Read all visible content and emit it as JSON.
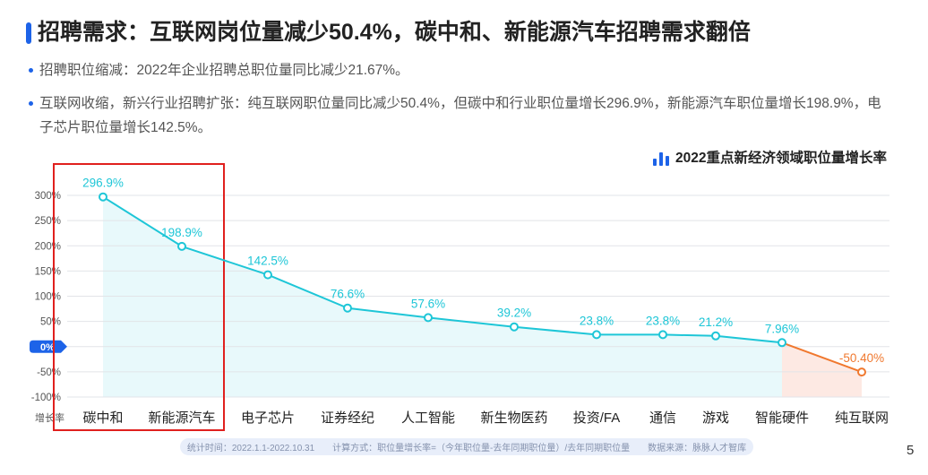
{
  "title": "招聘需求：互联网岗位量减少50.4%，碳中和、新能源汽车招聘需求翻倍",
  "bullets": [
    {
      "text": "招聘职位缩减：2022年企业招聘总职位量同比减少21.67%。"
    },
    {
      "text": "互联网收缩，新兴行业招聘扩张：纯互联网职位量同比减少50.4%，但碳中和行业职位量增长296.9%，新能源汽车职位量增长198.9%，电子芯片职位量增长142.5%。"
    }
  ],
  "chart_data": {
    "type": "line",
    "title": "2022重点新经济领域职位量增长率",
    "title_icon": "bar-chart-icon",
    "ylabel": "增长率",
    "ylim": [
      -100,
      300
    ],
    "y_ticks": [
      300,
      250,
      200,
      150,
      100,
      50,
      0,
      -50,
      -100
    ],
    "y_tick_labels": [
      "300%",
      "250%",
      "200%",
      "150%",
      "100%",
      "50%",
      "0%",
      "-50%",
      "-100%"
    ],
    "categories": [
      "碳中和",
      "新能源汽车",
      "电子芯片",
      "证券经纪",
      "人工智能",
      "新生物医药",
      "投资/FA",
      "通信",
      "游戏",
      "智能硬件",
      "纯互联网"
    ],
    "values": [
      296.9,
      198.9,
      142.5,
      76.6,
      57.6,
      39.2,
      23.8,
      23.8,
      21.2,
      7.96,
      -50.4
    ],
    "data_labels": [
      "296.9%",
      "198.9%",
      "142.5%",
      "76.6%",
      "57.6%",
      "39.2%",
      "23.8%",
      "23.8%",
      "21.2%",
      "7.96%",
      "-50.40%"
    ],
    "grid": "horizontal",
    "area_fill": true,
    "highlight_range": [
      0,
      1
    ],
    "colors": {
      "positive": "#1ec6d7",
      "negative": "#f0782e",
      "positive_fill": "#e8f9fb",
      "negative_fill": "#fde9e3",
      "zero_badge": "#1d63e8",
      "highlight_box": "#e0201e",
      "grid": "#e2e4e8"
    }
  },
  "footer": {
    "period": "统计时间：2022.1.1-2022.10.31",
    "method": "计算方式：职位量增长率=（今年职位量-去年同期职位量）/去年同期职位量",
    "source": "数据来源：脉脉人才智库"
  },
  "page_number": "5",
  "colors": {
    "accent": "#1d63e8",
    "title_text": "#222222",
    "body_text": "#555555"
  }
}
